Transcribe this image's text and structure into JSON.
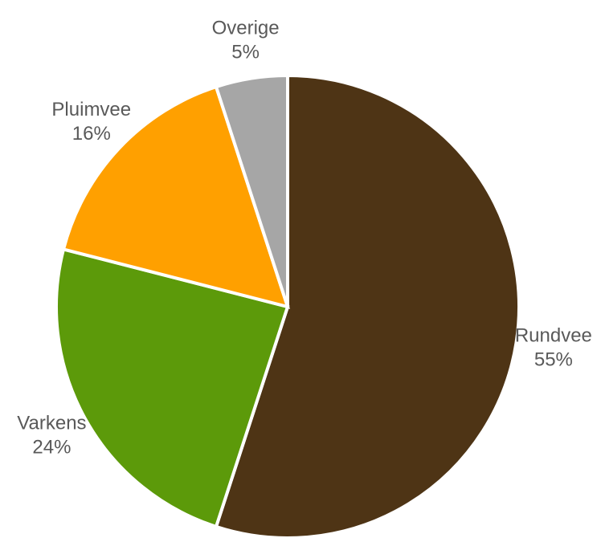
{
  "chart_data": {
    "type": "pie",
    "categories": [
      "Rundvee",
      "Varkens",
      "Pluimvee",
      "Overige"
    ],
    "values": [
      55,
      24,
      16,
      5
    ],
    "value_labels": [
      "55%",
      "24%",
      "16%",
      "5%"
    ],
    "colors": [
      "#4e3415",
      "#5c9a0a",
      "#ffa000",
      "#a6a6a6"
    ]
  }
}
